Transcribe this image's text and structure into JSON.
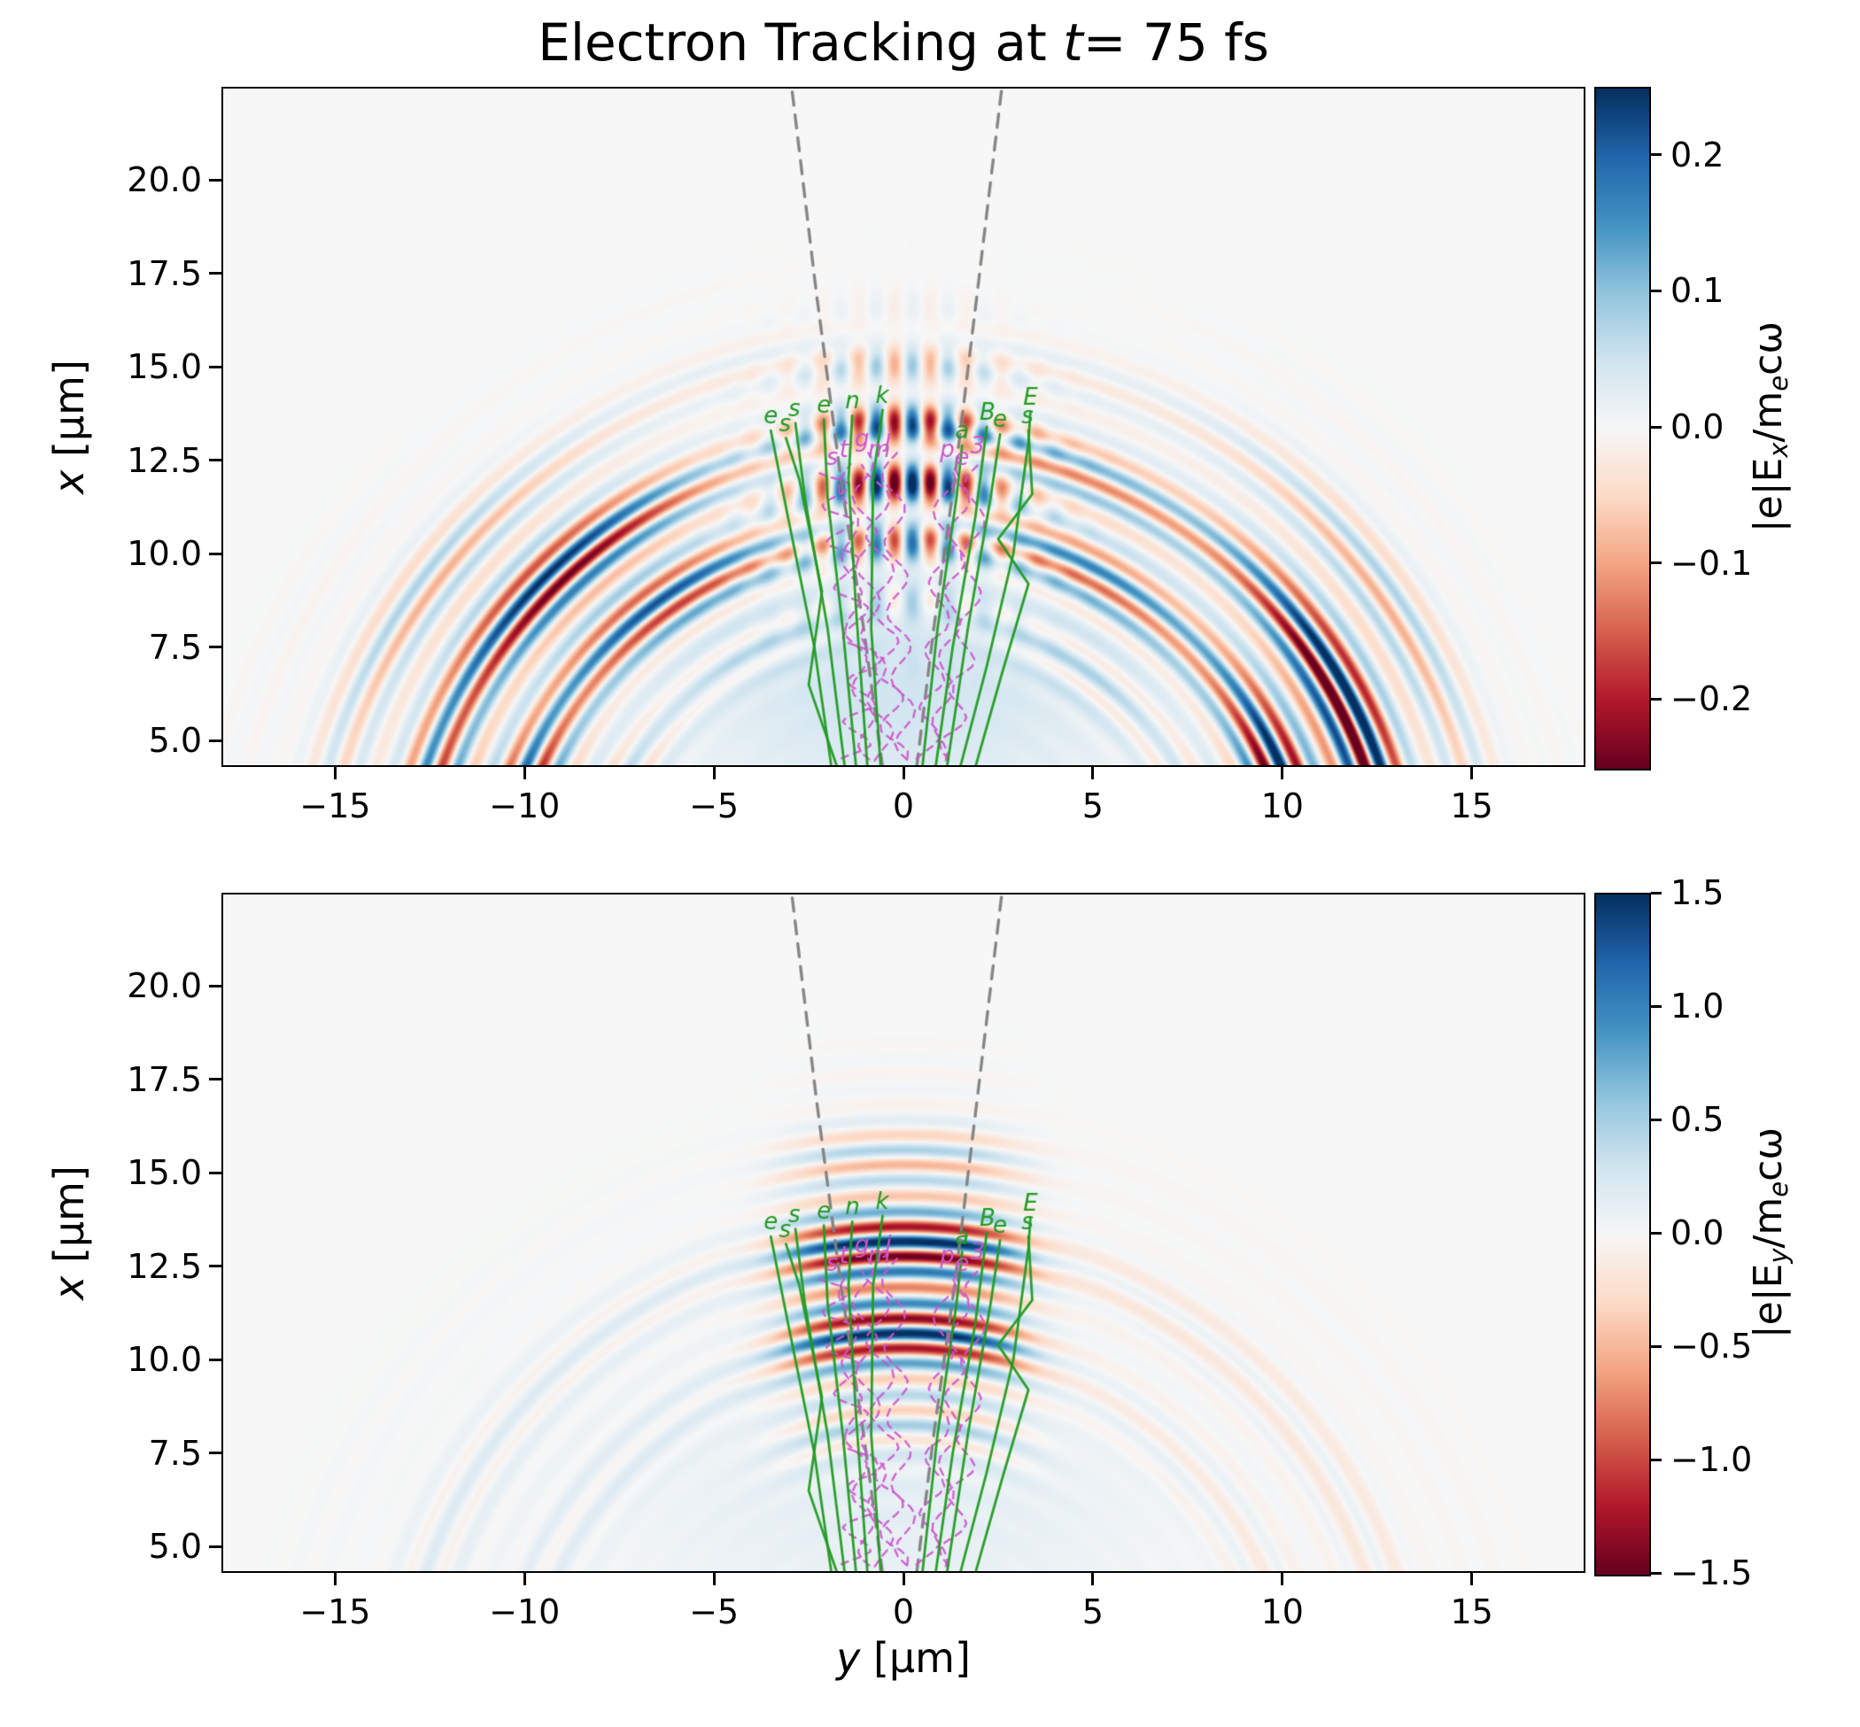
{
  "title": {
    "prefix": "Electron Tracking at ",
    "var": "t",
    "suffix": "= 75 fs"
  },
  "colors": {
    "rdbu": [
      "#67001f",
      "#b2182b",
      "#d6604d",
      "#f4a582",
      "#fddbc7",
      "#f7f7f7",
      "#d1e5f0",
      "#92c5de",
      "#4393c3",
      "#2166ac",
      "#053061"
    ],
    "green": "#219a21",
    "magenta": "#cc55cc",
    "cone": "#7f7f7f",
    "frame": "#000000",
    "background_mid": "#f7f7f7"
  },
  "chart_data": [
    {
      "type": "heatmap",
      "panel": "Ex",
      "title": "Electron Tracking at t= 75 fs",
      "xlabel": "y [µm]",
      "ylabel": "x [µm]",
      "xlabel_parts": {
        "var": "y",
        "unit": " [µm]"
      },
      "ylabel_parts": {
        "var": "x",
        "unit": " [µm]"
      },
      "xlim": [
        -18,
        18
      ],
      "ylim": [
        4.3,
        22.5
      ],
      "xtick_values": [
        -15,
        -10,
        -5,
        0,
        5,
        10,
        15
      ],
      "xtick_labels": [
        "−15",
        "−10",
        "−5",
        "0",
        "5",
        "10",
        "15"
      ],
      "ytick_values": [
        5.0,
        7.5,
        10.0,
        12.5,
        15.0,
        17.5,
        20.0
      ],
      "ytick_labels": [
        "5.0",
        "7.5",
        "10.0",
        "12.5",
        "15.0",
        "17.5",
        "20.0"
      ],
      "grid": false,
      "legend": false,
      "colorbar": {
        "label": "|e|Ex/mecω",
        "label_parts": {
          "p1": "|e|E",
          "s1": "x",
          "p2": "/m",
          "s2": "e",
          "p3": "cω"
        },
        "vmin": -0.25,
        "vmax": 0.25,
        "tick_values": [
          0.2,
          0.1,
          0.0,
          -0.1,
          -0.2
        ],
        "tick_labels": [
          "0.2",
          "0.1",
          "0.0",
          "−0.1",
          "−0.2"
        ]
      },
      "field": {
        "description": "Transverse laser field Ex of a diverging pulse reflected from focus near origin: concentric arc shells of alternating sign between r ≈ 9 and 15.5 µm, strongest in side lobes ±20–75°, white slit along y=0, interference columns for |y| < 3 µm, faint blue haze near bottom center",
        "wavelength_um": 0.82,
        "shell_center_r_um": 12.0,
        "shell_sigma_um": 3.1
      },
      "overlays": {
        "gray_dashed": "beam caustic cone diverging upward from y≈0",
        "green_solid": "tracked electron trajectories (11) rising from bottom to x≈13–14 µm with letter markers",
        "magenta_dashed": "oscillating tracked trajectories (8) confined to |y| < 2.5 µm with letter markers"
      }
    },
    {
      "type": "heatmap",
      "panel": "Ey",
      "xlabel": "y [µm]",
      "ylabel": "x [µm]",
      "xlabel_parts": {
        "var": "y",
        "unit": " [µm]"
      },
      "ylabel_parts": {
        "var": "x",
        "unit": " [µm]"
      },
      "xlim": [
        -18,
        18
      ],
      "ylim": [
        4.3,
        22.5
      ],
      "xtick_values": [
        -15,
        -10,
        -5,
        0,
        5,
        10,
        15
      ],
      "xtick_labels": [
        "−15",
        "−10",
        "−5",
        "0",
        "5",
        "10",
        "15"
      ],
      "ytick_values": [
        5.0,
        7.5,
        10.0,
        12.5,
        15.0,
        17.5,
        20.0
      ],
      "ytick_labels": [
        "5.0",
        "7.5",
        "10.0",
        "12.5",
        "15.0",
        "17.5",
        "20.0"
      ],
      "grid": false,
      "legend": false,
      "colorbar": {
        "label": "|e|Ey/mecω",
        "label_parts": {
          "p1": "|e|E",
          "s1": "y",
          "p2": "/m",
          "s2": "e",
          "p3": "cω"
        },
        "vmin": -1.5,
        "vmax": 1.5,
        "tick_values": [
          1.5,
          1.0,
          0.5,
          0.0,
          -0.5,
          -1.0,
          -1.5
        ],
        "tick_labels": [
          "1.5",
          "1.0",
          "0.5",
          "0.0",
          "−0.5",
          "−1.0",
          "−1.5"
        ]
      },
      "field": {
        "description": "Longitudinal-view field Ey: saturated horizontal red/blue stripe block for |y| < 4 µm between x ≈ 9.5 and 15.5 µm (wavelength 0.82 µm), very faint arcs outside (pale blue left, pale pink right), light blue haze near bottom center",
        "wavelength_um": 0.82,
        "shell_center_r_um": 12.0,
        "shell_sigma_um": 3.1
      },
      "overlays": {
        "gray_dashed": "beam caustic cone diverging upward from y≈0",
        "green_solid": "same tracked electron trajectories as top panel",
        "magenta_dashed": "same oscillating trajectories as top panel"
      }
    }
  ],
  "trajectories": {
    "cone": [
      {
        "pts": [
          [
            -0.55,
            4.3
          ],
          [
            -1.05,
            8.0
          ],
          [
            -1.65,
            12.0
          ],
          [
            -2.3,
            17.0
          ],
          [
            -2.95,
            22.5
          ]
        ]
      },
      {
        "pts": [
          [
            0.35,
            4.3
          ],
          [
            0.8,
            8.0
          ],
          [
            1.35,
            12.0
          ],
          [
            1.95,
            17.0
          ],
          [
            2.6,
            22.5
          ]
        ]
      }
    ],
    "green": [
      {
        "label": "e",
        "pts": [
          [
            -1.9,
            4.3
          ],
          [
            -2.35,
            7.5
          ],
          [
            -3.05,
            11.0
          ],
          [
            -3.5,
            13.3
          ]
        ]
      },
      {
        "label": "s",
        "pts": [
          [
            -1.55,
            4.3
          ],
          [
            -2.0,
            8.0
          ],
          [
            -2.6,
            11.5
          ],
          [
            -2.85,
            13.5
          ]
        ]
      },
      {
        "label": "e",
        "pts": [
          [
            -1.25,
            4.3
          ],
          [
            -1.6,
            8.0
          ],
          [
            -2.0,
            11.5
          ],
          [
            -2.1,
            13.6
          ]
        ]
      },
      {
        "label": "n",
        "pts": [
          [
            -0.95,
            4.3
          ],
          [
            -1.25,
            8.5
          ],
          [
            -1.45,
            12.0
          ],
          [
            -1.35,
            13.7
          ]
        ]
      },
      {
        "label": "k",
        "pts": [
          [
            -0.6,
            4.3
          ],
          [
            -0.85,
            8.0
          ],
          [
            -0.8,
            12.0
          ],
          [
            -0.55,
            13.85
          ]
        ]
      },
      {
        "label": "s",
        "pts": [
          [
            -1.75,
            4.3
          ],
          [
            -2.5,
            6.5
          ],
          [
            -2.15,
            9.0
          ],
          [
            -2.75,
            12.0
          ],
          [
            -3.1,
            13.1
          ]
        ]
      },
      {
        "label": "B",
        "pts": [
          [
            0.85,
            4.3
          ],
          [
            1.3,
            7.5
          ],
          [
            1.9,
            11.0
          ],
          [
            2.2,
            13.4
          ]
        ]
      },
      {
        "label": "e",
        "pts": [
          [
            1.15,
            4.3
          ],
          [
            1.7,
            8.0
          ],
          [
            2.3,
            11.5
          ],
          [
            2.55,
            13.2
          ]
        ]
      },
      {
        "label": "E",
        "pts": [
          [
            1.5,
            4.3
          ],
          [
            2.2,
            7.0
          ],
          [
            2.9,
            10.0
          ],
          [
            3.3,
            13.0
          ],
          [
            3.35,
            13.8
          ]
        ]
      },
      {
        "label": "s",
        "pts": [
          [
            1.9,
            4.3
          ],
          [
            2.6,
            6.8
          ],
          [
            3.3,
            9.2
          ],
          [
            2.5,
            10.4
          ],
          [
            3.4,
            11.6
          ],
          [
            3.3,
            13.3
          ]
        ]
      },
      {
        "label": "a",
        "pts": [
          [
            0.5,
            4.3
          ],
          [
            0.9,
            8.0
          ],
          [
            1.4,
            11.5
          ],
          [
            1.55,
            12.9
          ]
        ]
      }
    ],
    "magenta": [
      {
        "label": "t",
        "amp": 0.25,
        "pts": [
          [
            -0.9,
            4.5
          ],
          [
            -1.3,
            8.0
          ],
          [
            -1.5,
            12.4
          ]
        ]
      },
      {
        "label": "g",
        "amp": 0.3,
        "pts": [
          [
            -0.5,
            4.5
          ],
          [
            -0.9,
            8.5
          ],
          [
            -1.1,
            12.7
          ]
        ]
      },
      {
        "label": "m",
        "amp": 0.35,
        "pts": [
          [
            -0.2,
            4.5
          ],
          [
            -0.5,
            8.0
          ],
          [
            -0.75,
            12.4
          ]
        ]
      },
      {
        "label": "j",
        "amp": 0.3,
        "pts": [
          [
            0.1,
            4.5
          ],
          [
            -0.15,
            8.5
          ],
          [
            -0.3,
            12.7
          ]
        ]
      },
      {
        "label": "p",
        "amp": 0.3,
        "pts": [
          [
            0.6,
            4.5
          ],
          [
            0.9,
            8.0
          ],
          [
            1.15,
            12.4
          ]
        ]
      },
      {
        "label": "e",
        "amp": 0.25,
        "pts": [
          [
            0.9,
            4.5
          ],
          [
            1.3,
            8.5
          ],
          [
            1.55,
            12.2
          ]
        ]
      },
      {
        "label": "3",
        "amp": 0.3,
        "pts": [
          [
            1.2,
            4.5
          ],
          [
            1.7,
            8.0
          ],
          [
            1.95,
            12.5
          ]
        ]
      },
      {
        "label": "s",
        "amp": 0.4,
        "pts": [
          [
            -1.3,
            4.5
          ],
          [
            -1.05,
            7.0
          ],
          [
            -1.6,
            10.0
          ],
          [
            -1.85,
            12.2
          ]
        ]
      }
    ]
  }
}
